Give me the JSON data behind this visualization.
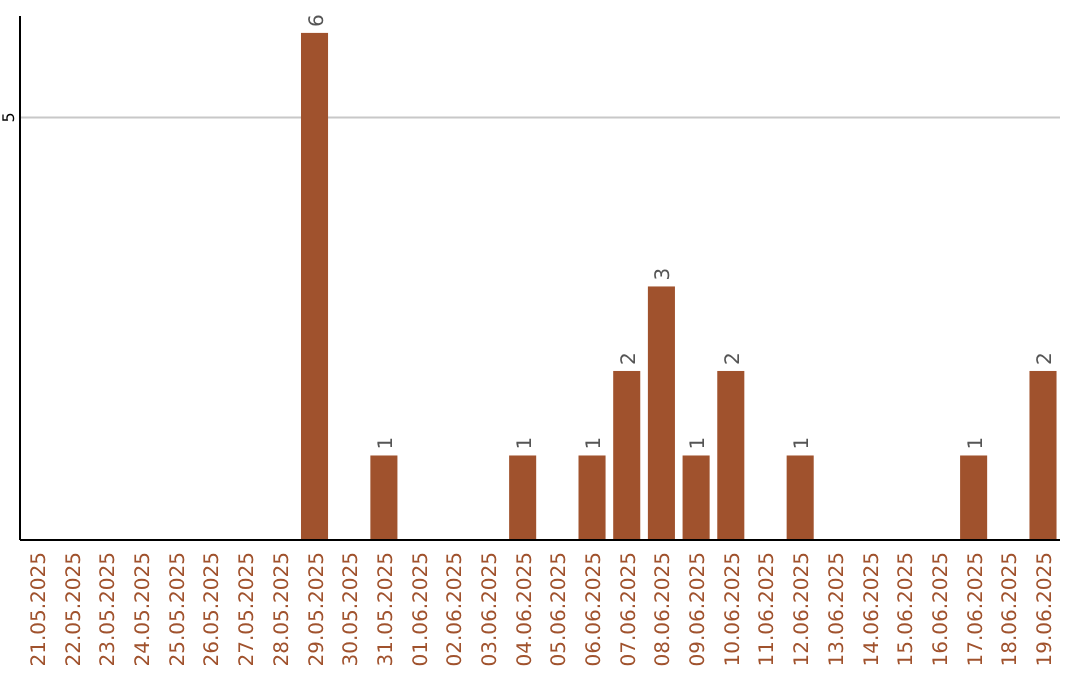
{
  "chart_data": {
    "type": "bar",
    "categories": [
      "21.05.2025",
      "22.05.2025",
      "23.05.2025",
      "24.05.2025",
      "25.05.2025",
      "26.05.2025",
      "27.05.2025",
      "28.05.2025",
      "29.05.2025",
      "30.05.2025",
      "31.05.2025",
      "01.06.2025",
      "02.06.2025",
      "03.06.2025",
      "04.06.2025",
      "05.06.2025",
      "06.06.2025",
      "07.06.2025",
      "08.06.2025",
      "09.06.2025",
      "10.06.2025",
      "11.06.2025",
      "12.06.2025",
      "13.06.2025",
      "14.06.2025",
      "15.06.2025",
      "16.06.2025",
      "17.06.2025",
      "18.06.2025",
      "19.06.2025"
    ],
    "values": [
      0,
      0,
      0,
      0,
      0,
      0,
      0,
      0,
      6,
      0,
      1,
      0,
      0,
      0,
      1,
      0,
      1,
      2,
      3,
      1,
      2,
      0,
      1,
      0,
      0,
      0,
      0,
      1,
      0,
      2
    ],
    "value_labels": [
      null,
      null,
      null,
      null,
      null,
      null,
      null,
      null,
      "6",
      null,
      "1",
      null,
      null,
      null,
      "1",
      null,
      "1",
      "2",
      "3",
      "1",
      "2",
      null,
      "1",
      null,
      null,
      null,
      null,
      "1",
      null,
      "2"
    ],
    "color": "#a0522d",
    "ylim": [
      0,
      6.2
    ],
    "yticks": [
      5
    ],
    "grid": "y"
  }
}
